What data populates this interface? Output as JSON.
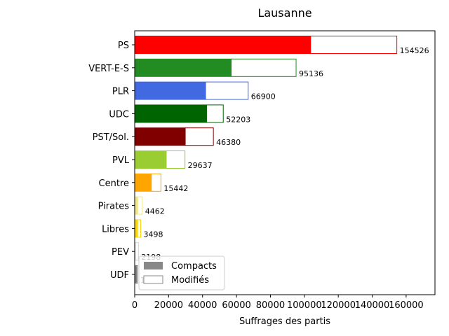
{
  "chart_data": {
    "type": "bar",
    "orientation": "horizontal",
    "title": "Lausanne",
    "xlabel": "Suffrages des partis",
    "ylabel": "",
    "xlim": [
      0,
      177000
    ],
    "xticks": [
      0,
      20000,
      40000,
      60000,
      80000,
      100000,
      120000,
      140000,
      160000
    ],
    "categories": [
      "PS",
      "VERT-E-S",
      "PLR",
      "UDC",
      "PST/Sol.",
      "PVL",
      "Centre",
      "Pirates",
      "Libres",
      "PEV",
      "UDF"
    ],
    "series": [
      {
        "name": "Compacts",
        "values": [
          103700,
          56900,
          41800,
          42400,
          29800,
          18600,
          9800,
          1800,
          1700,
          400,
          1100
        ]
      },
      {
        "name": "Modifiés",
        "values": [
          50826,
          38236,
          25100,
          9803,
          16580,
          11037,
          5642,
          2662,
          1798,
          1798,
          622
        ]
      }
    ],
    "totals": [
      "154526",
      "95136",
      "66900",
      "52203",
      "46380",
      "29637",
      "15442",
      "4462",
      "3498",
      "2198",
      "1733"
    ],
    "colors": [
      "#ff0000",
      "#228b22",
      "#4169e1",
      "#006400",
      "#800000",
      "#9acd32",
      "#ffa500",
      "#f0e68c",
      "#ffd700",
      "#d3d3d3",
      "#808080"
    ],
    "legend": {
      "placement": "lower-left",
      "entries": [
        {
          "label": "Compacts",
          "color": "#888888"
        },
        {
          "label": "Modifiés",
          "color": "#ffffff"
        }
      ]
    },
    "grid": false
  }
}
